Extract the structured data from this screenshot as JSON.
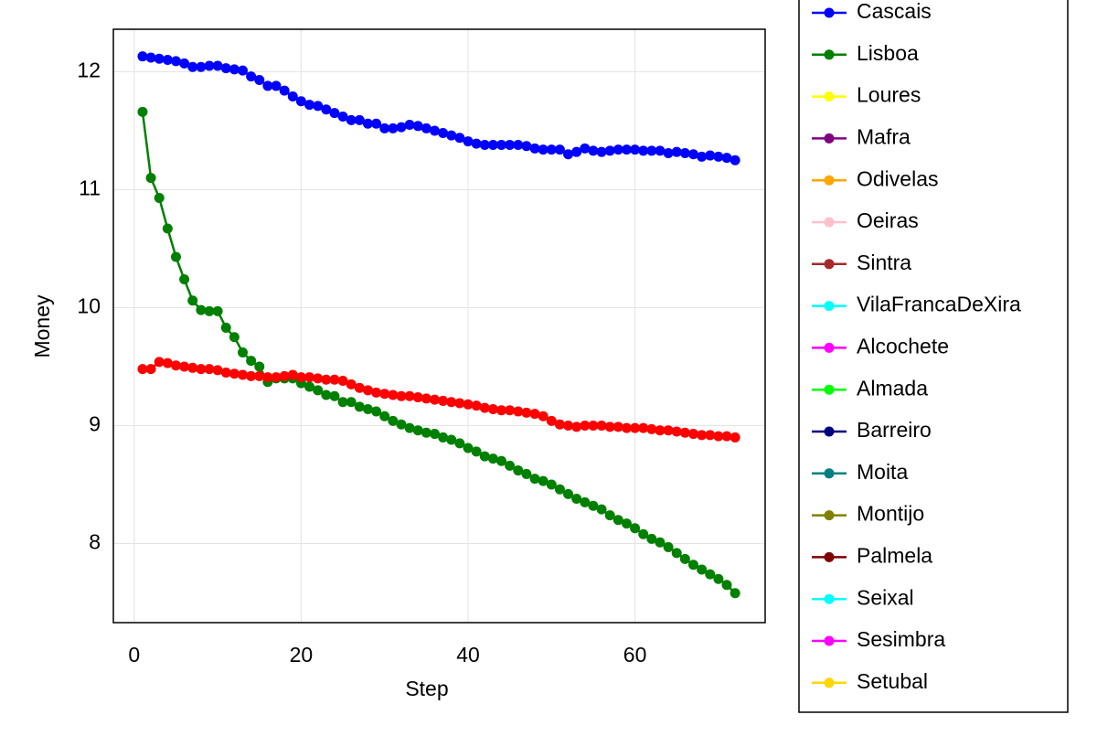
{
  "chart_data": {
    "type": "line",
    "x_label": "Step",
    "y_label": "Money",
    "x": [
      1,
      2,
      3,
      4,
      5,
      6,
      7,
      8,
      9,
      10,
      11,
      12,
      13,
      14,
      15,
      16,
      17,
      18,
      19,
      20,
      21,
      22,
      23,
      24,
      25,
      26,
      27,
      28,
      29,
      30,
      31,
      32,
      33,
      34,
      35,
      36,
      37,
      38,
      39,
      40,
      41,
      42,
      43,
      44,
      45,
      46,
      47,
      48,
      49,
      50,
      51,
      52,
      53,
      54,
      55,
      56,
      57,
      58,
      59,
      60,
      61,
      62,
      63,
      64,
      65,
      66,
      67,
      68,
      69,
      70,
      71,
      72
    ],
    "xlim": [
      -2.5,
      75.6
    ],
    "xticks": [
      0,
      20,
      40,
      60
    ],
    "ylim": [
      7.33,
      12.36
    ],
    "yticks": [
      8,
      9,
      10,
      11,
      12
    ],
    "grid": true,
    "legend_position": "right",
    "series": [
      {
        "name": "Cascais",
        "color": "#0000ff",
        "values": [
          12.13,
          12.12,
          12.11,
          12.1,
          12.09,
          12.07,
          12.04,
          12.04,
          12.05,
          12.05,
          12.03,
          12.02,
          12.01,
          11.96,
          11.93,
          11.88,
          11.88,
          11.84,
          11.79,
          11.75,
          11.72,
          11.71,
          11.68,
          11.65,
          11.62,
          11.59,
          11.59,
          11.56,
          11.56,
          11.52,
          11.52,
          11.53,
          11.55,
          11.54,
          11.52,
          11.5,
          11.48,
          11.46,
          11.44,
          11.41,
          11.39,
          11.38,
          11.38,
          11.38,
          11.38,
          11.38,
          11.37,
          11.35,
          11.34,
          11.34,
          11.34,
          11.3,
          11.32,
          11.35,
          11.33,
          11.32,
          11.33,
          11.34,
          11.34,
          11.34,
          11.33,
          11.33,
          11.33,
          11.31,
          11.32,
          11.31,
          11.3,
          11.28,
          11.29,
          11.28,
          11.27,
          11.25
        ]
      },
      {
        "name": "Lisboa",
        "color": "#008000",
        "values": [
          11.66,
          11.1,
          10.93,
          10.67,
          10.43,
          10.24,
          10.06,
          9.98,
          9.97,
          9.97,
          9.83,
          9.75,
          9.62,
          9.55,
          9.5,
          9.37,
          9.4,
          9.4,
          9.4,
          9.36,
          9.33,
          9.3,
          9.26,
          9.25,
          9.2,
          9.2,
          9.16,
          9.14,
          9.12,
          9.08,
          9.04,
          9.01,
          8.98,
          8.96,
          8.94,
          8.93,
          8.9,
          8.88,
          8.85,
          8.81,
          8.78,
          8.74,
          8.72,
          8.7,
          8.66,
          8.62,
          8.59,
          8.55,
          8.53,
          8.5,
          8.46,
          8.42,
          8.38,
          8.35,
          8.32,
          8.29,
          8.24,
          8.2,
          8.17,
          8.13,
          8.08,
          8.04,
          8.01,
          7.97,
          7.92,
          7.87,
          7.82,
          7.78,
          7.74,
          7.7,
          7.65,
          7.58
        ]
      },
      {
        "color": "#ff0000",
        "values": [
          9.48,
          9.48,
          9.54,
          9.53,
          9.51,
          9.5,
          9.49,
          9.48,
          9.48,
          9.47,
          9.45,
          9.44,
          9.43,
          9.42,
          9.42,
          9.41,
          9.41,
          9.42,
          9.43,
          9.41,
          9.41,
          9.4,
          9.39,
          9.39,
          9.38,
          9.35,
          9.32,
          9.3,
          9.28,
          9.27,
          9.26,
          9.25,
          9.25,
          9.24,
          9.23,
          9.22,
          9.21,
          9.2,
          9.19,
          9.18,
          9.17,
          9.15,
          9.14,
          9.13,
          9.13,
          9.12,
          9.11,
          9.1,
          9.08,
          9.04,
          9.01,
          9.0,
          8.99,
          9.0,
          9.0,
          9.0,
          8.99,
          8.99,
          8.98,
          8.98,
          8.98,
          8.97,
          8.96,
          8.96,
          8.95,
          8.94,
          8.93,
          8.92,
          8.92,
          8.91,
          8.91,
          8.9
        ]
      },
      {
        "name": "Loures",
        "color": "#ffff00"
      },
      {
        "name": "Mafra",
        "color": "#800080"
      },
      {
        "name": "Odivelas",
        "color": "#ffa500"
      },
      {
        "name": "Oeiras",
        "color": "#ffc0cb"
      },
      {
        "name": "Sintra",
        "color": "#a52a2a"
      },
      {
        "name": "VilaFrancaDeXira",
        "color": "#00ffff"
      },
      {
        "name": "Alcochete",
        "color": "#ff00ff"
      },
      {
        "name": "Almada",
        "color": "#00ff00"
      },
      {
        "name": "Barreiro",
        "color": "#000080"
      },
      {
        "name": "Moita",
        "color": "#008080"
      },
      {
        "name": "Montijo",
        "color": "#808000"
      },
      {
        "name": "Palmela",
        "color": "#800000"
      },
      {
        "name": "Seixal",
        "color": "#00ffff"
      },
      {
        "name": "Sesimbra",
        "color": "#ff00ff"
      },
      {
        "name": "Setubal",
        "color": "#ffd700"
      }
    ]
  }
}
